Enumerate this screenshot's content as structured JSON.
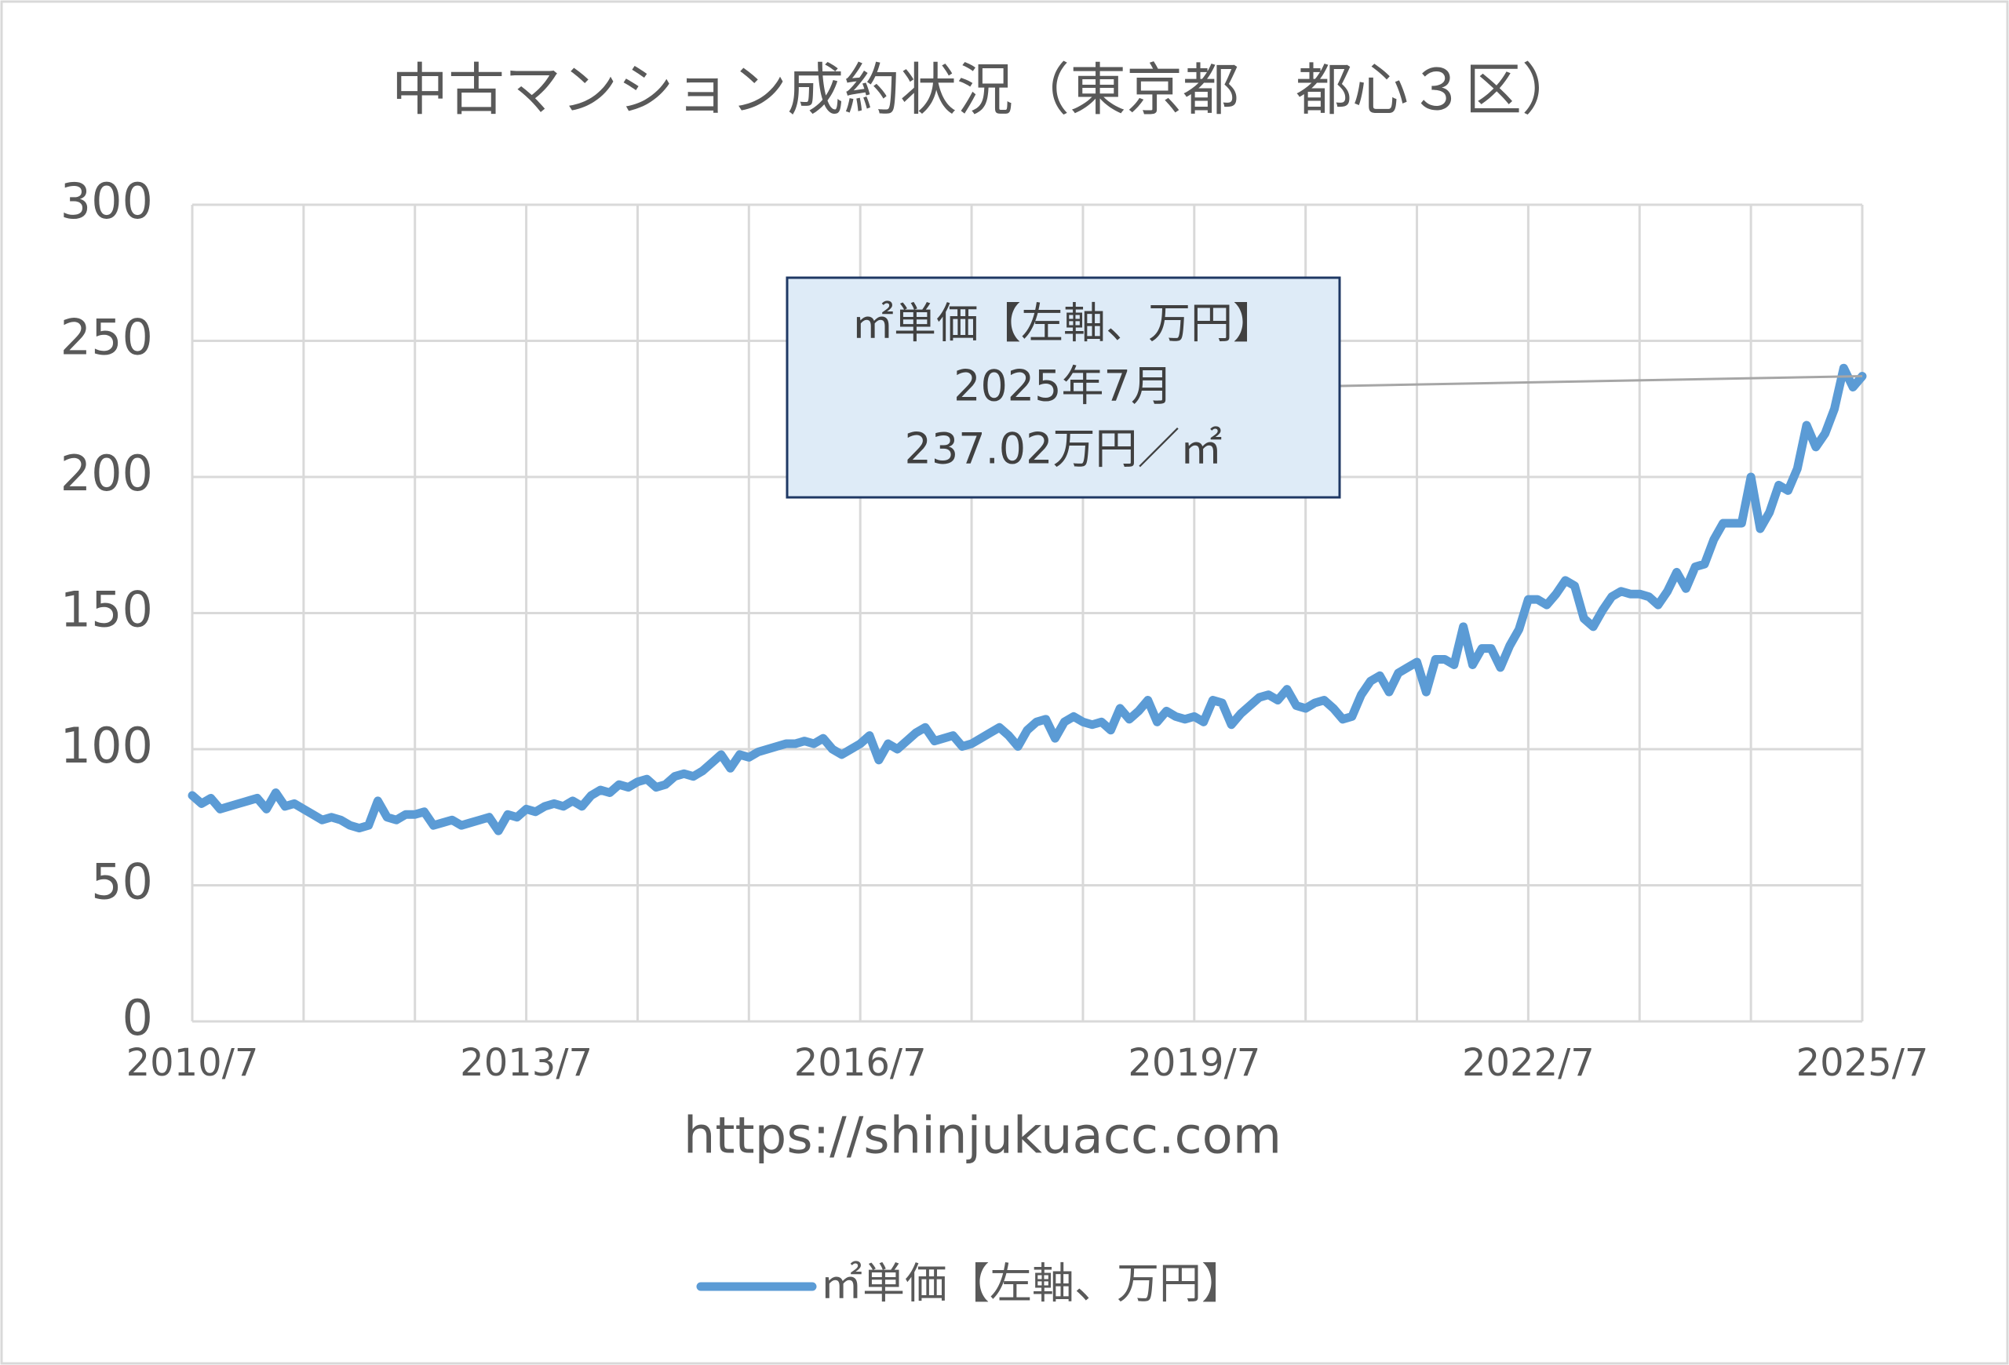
{
  "chart_data": {
    "type": "line",
    "title": "中古マンション成約状況（東京都　都心３区）",
    "xlabel": "https://shinjukuacc.com",
    "categories": [
      "2010/7",
      null,
      null,
      null,
      null,
      null,
      null,
      null,
      null,
      null,
      null,
      null,
      null,
      null,
      null,
      null,
      null,
      null,
      null,
      null,
      null,
      null,
      null,
      null,
      null,
      null,
      null,
      null,
      null,
      null,
      null,
      null,
      null,
      null,
      null,
      null,
      "2013/7",
      null,
      null,
      null,
      null,
      null,
      null,
      null,
      null,
      null,
      null,
      null,
      null,
      null,
      null,
      null,
      null,
      null,
      null,
      null,
      null,
      null,
      null,
      null,
      null,
      null,
      null,
      null,
      null,
      null,
      null,
      null,
      null,
      null,
      null,
      null,
      "2016/7",
      null,
      null,
      null,
      null,
      null,
      null,
      null,
      null,
      null,
      null,
      null,
      null,
      null,
      null,
      null,
      null,
      null,
      null,
      null,
      null,
      null,
      null,
      null,
      null,
      null,
      null,
      null,
      null,
      null,
      null,
      null,
      null,
      null,
      null,
      null,
      "2019/7",
      null,
      null,
      null,
      null,
      null,
      null,
      null,
      null,
      null,
      null,
      null,
      null,
      null,
      null,
      null,
      null,
      null,
      null,
      null,
      null,
      null,
      null,
      null,
      null,
      null,
      null,
      null,
      null,
      null,
      null,
      null,
      null,
      null,
      null,
      null,
      "2022/7",
      null,
      null,
      null,
      null,
      null,
      null,
      null,
      null,
      null,
      null,
      null,
      null,
      null,
      null,
      null,
      null,
      null,
      null,
      null,
      null,
      null,
      null,
      null,
      null,
      null,
      null,
      null,
      null,
      null,
      null,
      null,
      null,
      null,
      null,
      null,
      "2025/7"
    ],
    "series": [
      {
        "name": "㎡単価【左軸、万円】",
        "color": "#5b9bd5",
        "values": [
          83,
          80,
          82,
          78,
          79,
          80,
          81,
          82,
          78,
          84,
          79,
          80,
          78,
          76,
          74,
          75,
          74,
          72,
          71,
          72,
          81,
          75,
          74,
          76,
          76,
          77,
          72,
          73,
          74,
          72,
          73,
          74,
          75,
          70,
          76,
          75,
          78,
          77,
          79,
          80,
          79,
          81,
          79,
          83,
          85,
          84,
          87,
          86,
          88,
          89,
          86,
          87,
          90,
          91,
          90,
          92,
          95,
          98,
          93,
          98,
          97,
          99,
          100,
          101,
          102,
          102,
          103,
          102,
          104,
          100,
          98,
          100,
          102,
          105,
          96,
          102,
          100,
          103,
          106,
          108,
          103,
          104,
          105,
          101,
          102,
          104,
          106,
          108,
          105,
          101,
          107,
          110,
          111,
          104,
          110,
          112,
          110,
          109,
          110,
          107,
          115,
          111,
          114,
          118,
          110,
          114,
          112,
          111,
          112,
          110,
          118,
          117,
          109,
          113,
          116,
          119,
          120,
          118,
          122,
          116,
          115,
          117,
          118,
          115,
          111,
          112,
          120,
          125,
          127,
          121,
          128,
          130,
          132,
          121,
          133,
          133,
          131,
          145,
          131,
          137,
          137,
          130,
          138,
          144,
          155,
          155,
          153,
          157,
          162,
          160,
          148,
          145,
          151,
          156,
          158,
          157,
          157,
          156,
          153,
          158,
          165,
          159,
          167,
          168,
          177,
          183,
          183,
          183,
          200,
          181,
          187,
          197,
          195,
          203,
          219,
          211,
          216,
          225,
          240,
          233,
          237.02
        ]
      }
    ],
    "ylim": [
      0,
      300
    ],
    "yticks": [
      0,
      50,
      100,
      150,
      200,
      250,
      300
    ],
    "grid": true,
    "legend": "bottom",
    "annotation": {
      "lines": [
        "㎡単価【左軸、万円】",
        "2025年7月",
        "237.02万円／㎡"
      ],
      "point": 180
    }
  }
}
